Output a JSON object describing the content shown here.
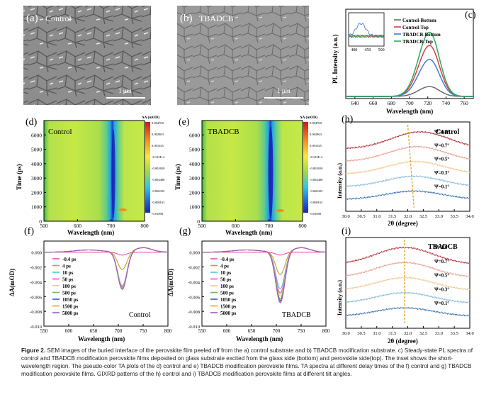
{
  "figure": {
    "panels": {
      "a": {
        "label": "(a)",
        "title": "Control",
        "scalebar": "1 μm"
      },
      "b": {
        "label": "(b)",
        "title": "TBADCB",
        "scalebar": "1 μm"
      },
      "c": {
        "label": "(c)"
      },
      "d": {
        "label": "(d)",
        "title": "Control"
      },
      "e": {
        "label": "(e)",
        "title": "TBADCB"
      },
      "f": {
        "label": "(f)",
        "title": "Control"
      },
      "g": {
        "label": "(g)",
        "title": "TBADCB"
      },
      "h": {
        "label": "(h)",
        "title": "Control"
      },
      "i": {
        "label": "(i)",
        "title": "TBADCB"
      }
    }
  },
  "caption": {
    "label": "Figure 2.",
    "text": "SEM images of the buried interface of the perovskite film peeled off from the a) control substrate and b) TBADCB modification substrate. c) Steady-state PL spectra of control and TBADCB modification perovskite films deposited on glass substrate excited from the glass side (bottom) and perovskite side(top). The inset shows the short-wavelength region. The pseudo-color TA plots of the d) control and e) TBADCB modification perovskite films. TA spectra at different delay times of the f) control and g) TBADCB modification perovskite films. GIXRD patterns of the h) control and i) TBADCB modification perovskite films at different tilt angles."
  },
  "chart_data": [
    {
      "id": "c",
      "type": "line",
      "xlabel": "Wavelength (nm)",
      "ylabel": "PL Intensity (a.u.)",
      "xlim": [
        630,
        770
      ],
      "xticks": [
        640,
        660,
        680,
        700,
        720,
        740,
        760
      ],
      "series": [
        {
          "name": "Control-Bottom",
          "color": "#6b6b6b",
          "peak": 0.12
        },
        {
          "name": "Control-Top",
          "color": "#d94040",
          "peak": 0.62
        },
        {
          "name": "TBADCB-Bottom",
          "color": "#3d7dd6",
          "peak": 0.45
        },
        {
          "name": "TBADCB-Top",
          "color": "#2eaa5a",
          "peak": 0.78
        }
      ],
      "peak_center_nm": 722,
      "inset": {
        "xticks": [
          400,
          450,
          500
        ],
        "xlim": [
          380,
          510
        ]
      }
    },
    {
      "id": "d",
      "type": "heatmap",
      "xlabel": "Wavelength (nm)",
      "ylabel": "Time (ps)",
      "xlim": [
        500,
        800
      ],
      "ylim": [
        0,
        7000
      ],
      "xticks": [
        500,
        600,
        700,
        800
      ],
      "yticks": [
        0,
        1000,
        2000,
        3000,
        4000,
        5000,
        6000
      ],
      "colorbar_title": "ΔA (mOD)",
      "colorbar_ticks": [
        "0.004700",
        "0.002863",
        "0.001025",
        "-8.125E-4",
        "-0.002650",
        "-0.004488",
        "-0.006325",
        "-0.008163",
        "-0.01000"
      ]
    },
    {
      "id": "e",
      "type": "heatmap",
      "xlabel": "Wavelength (nm)",
      "ylabel": "Time (ps)",
      "xlim": [
        500,
        800
      ],
      "ylim": [
        0,
        7000
      ],
      "xticks": [
        500,
        600,
        700,
        800
      ],
      "yticks": [
        0,
        1000,
        2000,
        3000,
        4000,
        5000,
        6000
      ],
      "colorbar_title": "ΔA (mOD)",
      "colorbar_ticks": [
        "0.004700",
        "0.002863",
        "0.001025",
        "-8.125E-4",
        "-0.002650",
        "-0.004488",
        "-0.006325",
        "-0.008163",
        "-0.01000"
      ]
    },
    {
      "id": "f",
      "type": "line",
      "xlabel": "Wavelength (nm)",
      "ylabel": "ΔA(mOD)",
      "xlim": [
        550,
        800
      ],
      "ylim": [
        -0.01,
        0.0015
      ],
      "xticks": [
        550,
        600,
        650,
        700,
        750,
        800
      ],
      "yticks": [
        "0.000",
        "-0.002",
        "-0.004",
        "-0.006",
        "-0.008",
        "-0.010"
      ],
      "dip_center_nm": 708,
      "series": [
        {
          "name": "-0.4 ps",
          "color": "#e64fb0",
          "depth": 0.0004
        },
        {
          "name": "4 ps",
          "color": "#cf9b28",
          "depth": 0.0024
        },
        {
          "name": "10 ps",
          "color": "#4dbfe8",
          "depth": 0.0046
        },
        {
          "name": "50 ps",
          "color": "#d94fd9",
          "depth": 0.0047
        },
        {
          "name": "100 ps",
          "color": "#f0d24a",
          "depth": 0.0048
        },
        {
          "name": "500 ps",
          "color": "#6cbe45",
          "depth": 0.0049
        },
        {
          "name": "1050 ps",
          "color": "#2f5fb3",
          "depth": 0.005
        },
        {
          "name": "1500 ps",
          "color": "#f29a3a",
          "depth": 0.005
        },
        {
          "name": "5000 ps",
          "color": "#9a5cc7",
          "depth": 0.0051
        }
      ]
    },
    {
      "id": "g",
      "type": "line",
      "xlabel": "Wavelength (nm)",
      "ylabel": "ΔA(mOD)",
      "xlim": [
        550,
        800
      ],
      "ylim": [
        -0.01,
        0.0015
      ],
      "xticks": [
        550,
        600,
        650,
        700,
        750,
        800
      ],
      "yticks": [
        "0.000",
        "-0.002",
        "-0.004",
        "-0.006",
        "-0.008",
        "-0.010"
      ],
      "dip_center_nm": 708,
      "series": [
        {
          "name": "-0.4 ps",
          "color": "#e64fb0",
          "depth": 0.0004
        },
        {
          "name": "4 ps",
          "color": "#cf9b28",
          "depth": 0.0031
        },
        {
          "name": "10 ps",
          "color": "#4dbfe8",
          "depth": 0.005
        },
        {
          "name": "50 ps",
          "color": "#d94fd9",
          "depth": 0.0056
        },
        {
          "name": "100 ps",
          "color": "#f0d24a",
          "depth": 0.006
        },
        {
          "name": "500 ps",
          "color": "#6cbe45",
          "depth": 0.0064
        },
        {
          "name": "1050 ps",
          "color": "#2f5fb3",
          "depth": 0.0066
        },
        {
          "name": "1500 ps",
          "color": "#f29a3a",
          "depth": 0.0068
        },
        {
          "name": "5000 ps",
          "color": "#9a5cc7",
          "depth": 0.0069
        }
      ]
    },
    {
      "id": "h",
      "type": "line",
      "xlabel": "2θ (degree)",
      "ylabel": "Intensity (a.u.)",
      "xlim": [
        30.0,
        34.0
      ],
      "xticks": [
        "30.0",
        "30.5",
        "31.0",
        "31.5",
        "32.0",
        "32.5",
        "33.0",
        "33.5",
        "34.0"
      ],
      "series": [
        {
          "name": "Ψ=1.0°",
          "color": "#b0282e",
          "peak_2theta": 32.4
        },
        {
          "name": "Ψ=0.7°",
          "color": "#e89a86",
          "peak_2theta": 32.3
        },
        {
          "name": "Ψ=0.5°",
          "color": "#f1c48a",
          "peak_2theta": 32.25
        },
        {
          "name": "Ψ=0.3°",
          "color": "#7fb6d6",
          "peak_2theta": 32.2
        },
        {
          "name": "Ψ=0.1°",
          "color": "#2f6fae",
          "peak_2theta": 32.2
        }
      ],
      "guide_line": {
        "from_2theta": 32.0,
        "to_2theta": 32.2
      }
    },
    {
      "id": "i",
      "type": "line",
      "xlabel": "2θ (degree)",
      "ylabel": "Intensity (a.u.)",
      "xlim": [
        30.0,
        34.0
      ],
      "xticks": [
        "30.0",
        "30.5",
        "31.0",
        "31.5",
        "32.0",
        "32.5",
        "33.0",
        "33.5",
        "34.0"
      ],
      "series": [
        {
          "name": "Ψ=1.0°",
          "color": "#b0282e",
          "peak_2theta": 31.9
        },
        {
          "name": "Ψ=0.7°",
          "color": "#e89a86",
          "peak_2theta": 31.9
        },
        {
          "name": "Ψ=0.5°",
          "color": "#f1c48a",
          "peak_2theta": 31.9
        },
        {
          "name": "Ψ=0.3°",
          "color": "#7fb6d6",
          "peak_2theta": 31.9
        },
        {
          "name": "Ψ=0.1°",
          "color": "#2f6fae",
          "peak_2theta": 31.9
        }
      ],
      "guide_line": {
        "from_2theta": 31.9,
        "to_2theta": 31.9
      }
    }
  ]
}
